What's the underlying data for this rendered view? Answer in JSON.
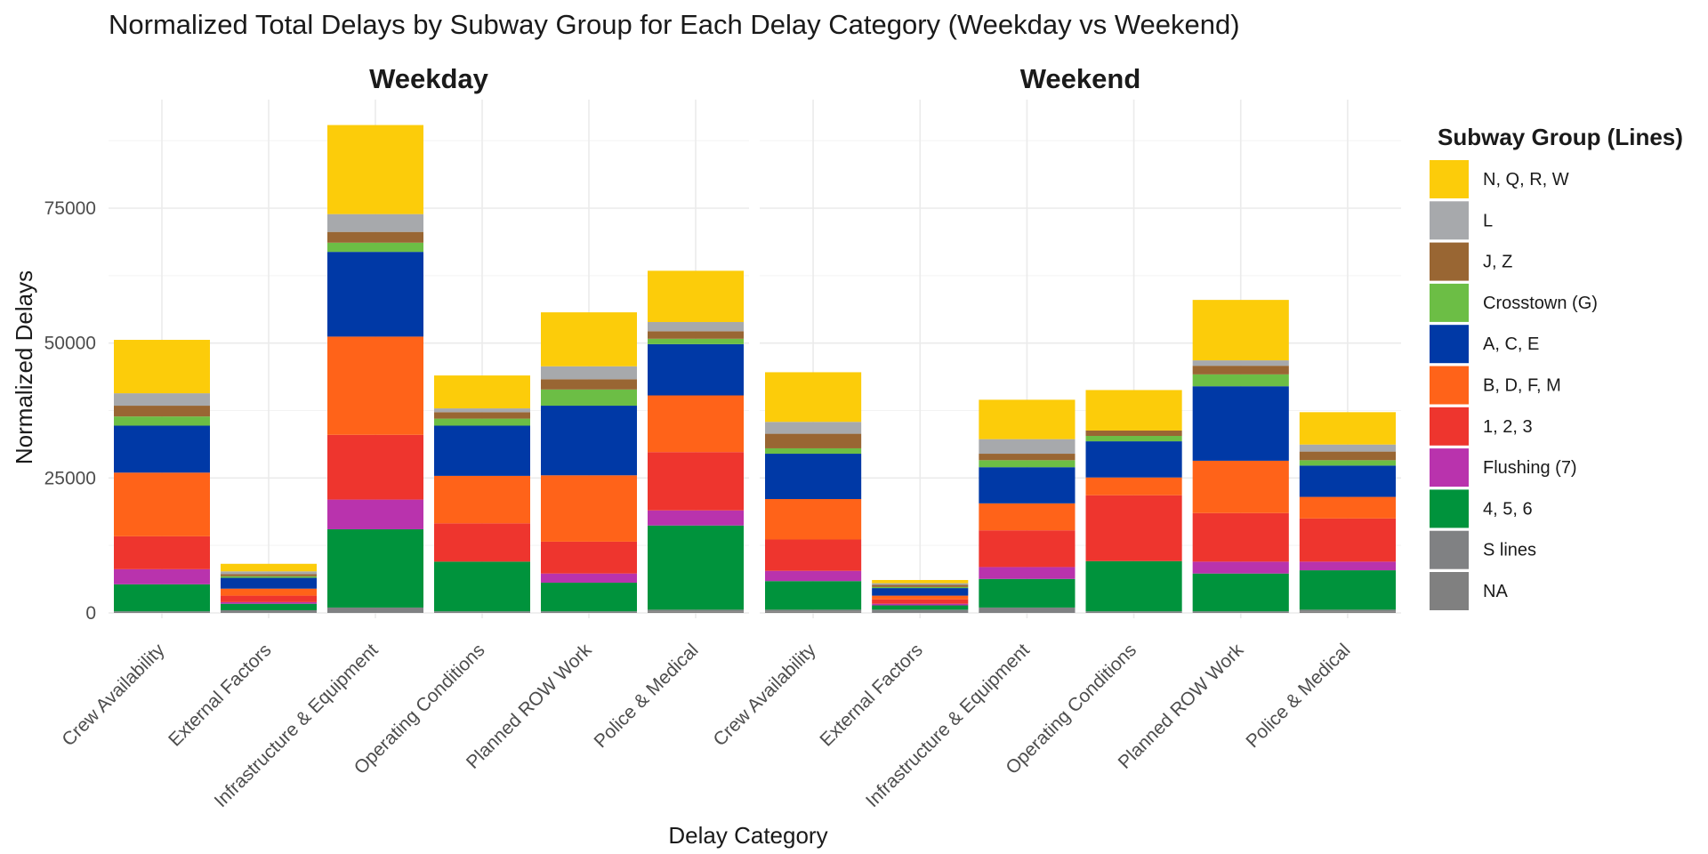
{
  "chart_data": {
    "type": "bar",
    "stacked": true,
    "title": "Normalized Total Delays by Subway Group for Each Delay Category (Weekday vs Weekend)",
    "xlabel": "Delay Category",
    "ylabel": "Normalized Delays",
    "ylim": [
      0,
      95000
    ],
    "yticks": [
      0,
      25000,
      50000,
      75000
    ],
    "grid": true,
    "legend_position": "right",
    "legend_title": "Subway Group (Lines)",
    "categories": [
      "Crew Availability",
      "External Factors",
      "Infrastructure & Equipment",
      "Operating Conditions",
      "Planned ROW Work",
      "Police & Medical"
    ],
    "groups": [
      {
        "name": "N, Q, R, W",
        "color": "#FCCC0A"
      },
      {
        "name": "L",
        "color": "#A7A9AC"
      },
      {
        "name": "J, Z",
        "color": "#996633"
      },
      {
        "name": "Crosstown (G)",
        "color": "#6CBE45"
      },
      {
        "name": "A, C, E",
        "color": "#0039A6"
      },
      {
        "name": "B, D, F, M",
        "color": "#FF6319"
      },
      {
        "name": "1, 2, 3",
        "color": "#EE352E"
      },
      {
        "name": "Flushing (7)",
        "color": "#B933AD"
      },
      {
        "name": "4, 5, 6",
        "color": "#00933C"
      },
      {
        "name": "S lines",
        "color": "#808183"
      },
      {
        "name": "NA",
        "color": "#808080"
      }
    ],
    "panels": [
      {
        "name": "Weekday",
        "series": [
          {
            "name": "NA",
            "values": [
              0,
              0,
              0,
              0,
              0,
              300
            ]
          },
          {
            "name": "S lines",
            "values": [
              300,
              500,
              1000,
              300,
              300,
              300
            ]
          },
          {
            "name": "4, 5, 6",
            "values": [
              5000,
              1200,
              14500,
              9200,
              5300,
              15600
            ]
          },
          {
            "name": "Flushing (7)",
            "values": [
              2800,
              300,
              5500,
              0,
              1700,
              2800
            ]
          },
          {
            "name": "1, 2, 3",
            "values": [
              6100,
              1200,
              12000,
              7100,
              5900,
              10800
            ]
          },
          {
            "name": "B, D, F, M",
            "values": [
              11800,
              1300,
              18200,
              8800,
              12300,
              10500
            ]
          },
          {
            "name": "A, C, E",
            "values": [
              8700,
              2000,
              15700,
              9300,
              12900,
              9500
            ]
          },
          {
            "name": "Crosstown (G)",
            "values": [
              1700,
              300,
              1700,
              1300,
              3000,
              1000
            ]
          },
          {
            "name": "J, Z",
            "values": [
              2000,
              400,
              2000,
              1200,
              1900,
              1400
            ]
          },
          {
            "name": "L",
            "values": [
              2300,
              500,
              3300,
              700,
              2400,
              1700
            ]
          },
          {
            "name": "N, Q, R, W",
            "values": [
              9900,
              1400,
              16500,
              6100,
              10000,
              9500
            ]
          }
        ]
      },
      {
        "name": "Weekend",
        "series": [
          {
            "name": "NA",
            "values": [
              300,
              0,
              0,
              0,
              0,
              300
            ]
          },
          {
            "name": "S lines",
            "values": [
              300,
              600,
              1000,
              300,
              300,
              300
            ]
          },
          {
            "name": "4, 5, 6",
            "values": [
              5300,
              800,
              5300,
              9300,
              7000,
              7300
            ]
          },
          {
            "name": "Flushing (7)",
            "values": [
              1900,
              300,
              2200,
              0,
              2200,
              1600
            ]
          },
          {
            "name": "1, 2, 3",
            "values": [
              5800,
              800,
              6800,
              12200,
              9000,
              8000
            ]
          },
          {
            "name": "B, D, F, M",
            "values": [
              7500,
              700,
              5000,
              3300,
              9700,
              4000
            ]
          },
          {
            "name": "A, C, E",
            "values": [
              8400,
              1400,
              6700,
              6700,
              13800,
              5800
            ]
          },
          {
            "name": "Crosstown (G)",
            "values": [
              1000,
              200,
              1300,
              1000,
              2200,
              1000
            ]
          },
          {
            "name": "J, Z",
            "values": [
              2700,
              400,
              1200,
              1000,
              1600,
              1600
            ]
          },
          {
            "name": "L",
            "values": [
              2200,
              300,
              2700,
              0,
              1000,
              1300
            ]
          },
          {
            "name": "N, Q, R, W",
            "values": [
              9200,
              600,
              7300,
              7500,
              11200,
              6000
            ]
          }
        ]
      }
    ]
  }
}
